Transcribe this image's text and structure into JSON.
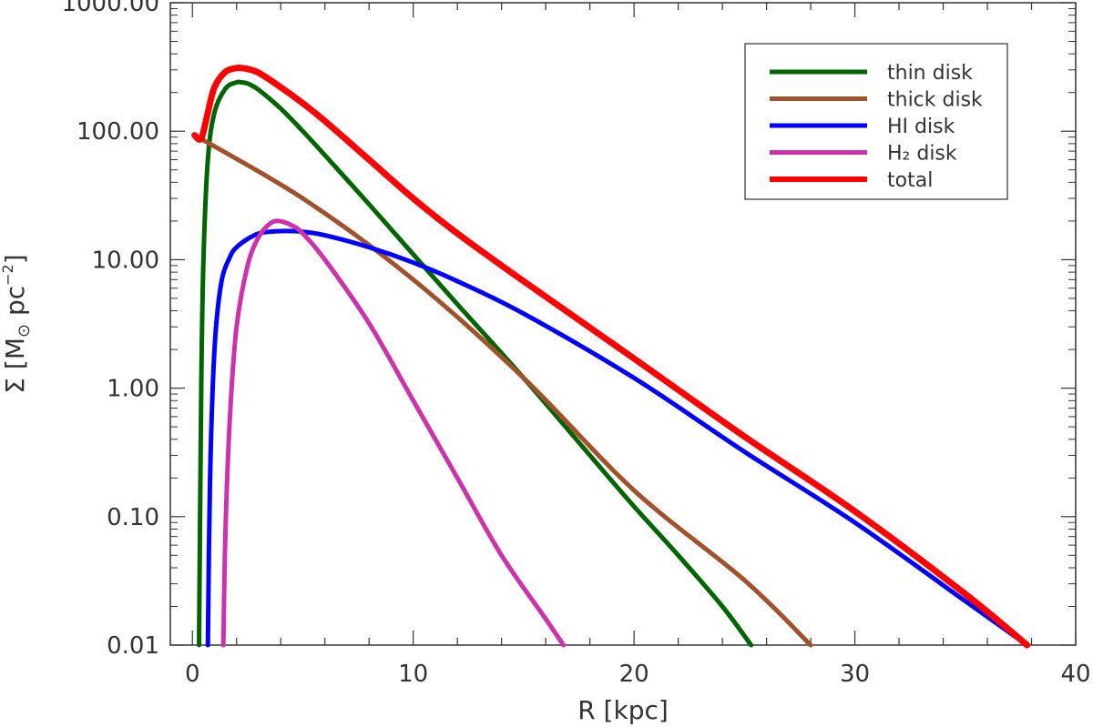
{
  "chart_data": {
    "type": "line",
    "xlabel": "R [kpc]",
    "ylabel_prefix": "Σ [M",
    "ylabel_sun": "⊙",
    "ylabel_units": " pc",
    "ylabel_exp": "−2",
    "ylabel_suffix": "]",
    "xlim": [
      -1,
      40
    ],
    "ylim": [
      0.01,
      1000
    ],
    "yscale": "log",
    "xticks": [
      0,
      10,
      20,
      30,
      40
    ],
    "xtick_labels": [
      "0",
      "10",
      "20",
      "30",
      "40"
    ],
    "yticks": [
      0.01,
      0.1,
      1,
      10,
      100,
      1000
    ],
    "ytick_labels": [
      "0.01",
      "0.10",
      "1.00",
      "10.00",
      "100.00",
      "1000.00"
    ],
    "grid": false,
    "legend_position": "top-right",
    "series": [
      {
        "name": "thin disk",
        "color": "#006400",
        "x": [
          0.3,
          0.4,
          0.5,
          0.7,
          1.0,
          1.5,
          2.0,
          2.2,
          2.5,
          3.0,
          4.0,
          5.0,
          6.0,
          8.0,
          10.0,
          12.0,
          15.0,
          18.0,
          20.0,
          22.0,
          24.0,
          25.3
        ],
        "y": [
          0.01,
          1.0,
          10.0,
          60.0,
          140.0,
          215.0,
          240.0,
          240.0,
          235.0,
          210.0,
          150.0,
          100.0,
          65.0,
          27.0,
          11.0,
          4.5,
          1.2,
          0.3,
          0.12,
          0.05,
          0.02,
          0.01
        ]
      },
      {
        "name": "thick disk",
        "color": "#A0522D",
        "x": [
          0.1,
          5.0,
          10.0,
          15.0,
          20.0,
          25.0,
          28.0
        ],
        "y": [
          93.0,
          30.0,
          7.0,
          1.2,
          0.16,
          0.032,
          0.01
        ]
      },
      {
        "name": "HI disk",
        "color": "#0000FF",
        "x": [
          0.7,
          0.8,
          1.0,
          1.3,
          1.7,
          2.0,
          2.5,
          3.0,
          3.5,
          4.0,
          4.5,
          5.0,
          6.0,
          8.0,
          10.0,
          12.0,
          15.0,
          20.0,
          25.0,
          30.0,
          35.0,
          37.8
        ],
        "y": [
          0.01,
          0.2,
          2.0,
          6.5,
          10.5,
          12.5,
          14.5,
          16.0,
          16.5,
          16.7,
          16.7,
          16.5,
          15.5,
          12.5,
          9.5,
          6.8,
          3.8,
          1.2,
          0.32,
          0.09,
          0.022,
          0.01
        ]
      },
      {
        "name": "H₂ disk",
        "color": "#CC33AA",
        "x": [
          1.4,
          1.5,
          1.7,
          2.0,
          2.5,
          3.0,
          3.5,
          3.9,
          4.5,
          5.0,
          6.0,
          8.0,
          10.0,
          12.0,
          14.0,
          16.0,
          16.8
        ],
        "y": [
          0.01,
          0.08,
          0.6,
          3.0,
          9.0,
          15.0,
          19.0,
          20.0,
          18.5,
          16.0,
          10.0,
          3.2,
          0.8,
          0.2,
          0.05,
          0.016,
          0.01
        ]
      },
      {
        "name": "total",
        "color": "#FF0000",
        "x": [
          0.1,
          0.4,
          0.7,
          1.0,
          1.5,
          2.0,
          2.2,
          2.5,
          3.0,
          4.0,
          5.0,
          6.0,
          8.0,
          10.0,
          12.0,
          15.0,
          20.0,
          25.0,
          30.0,
          35.0,
          37.8
        ],
        "y": [
          93.0,
          88.0,
          140.0,
          220.0,
          290.0,
          310.0,
          310.0,
          305.0,
          285.0,
          220.0,
          165.0,
          120.0,
          60.0,
          30.0,
          16.0,
          6.8,
          1.7,
          0.42,
          0.11,
          0.025,
          0.01
        ]
      }
    ]
  }
}
